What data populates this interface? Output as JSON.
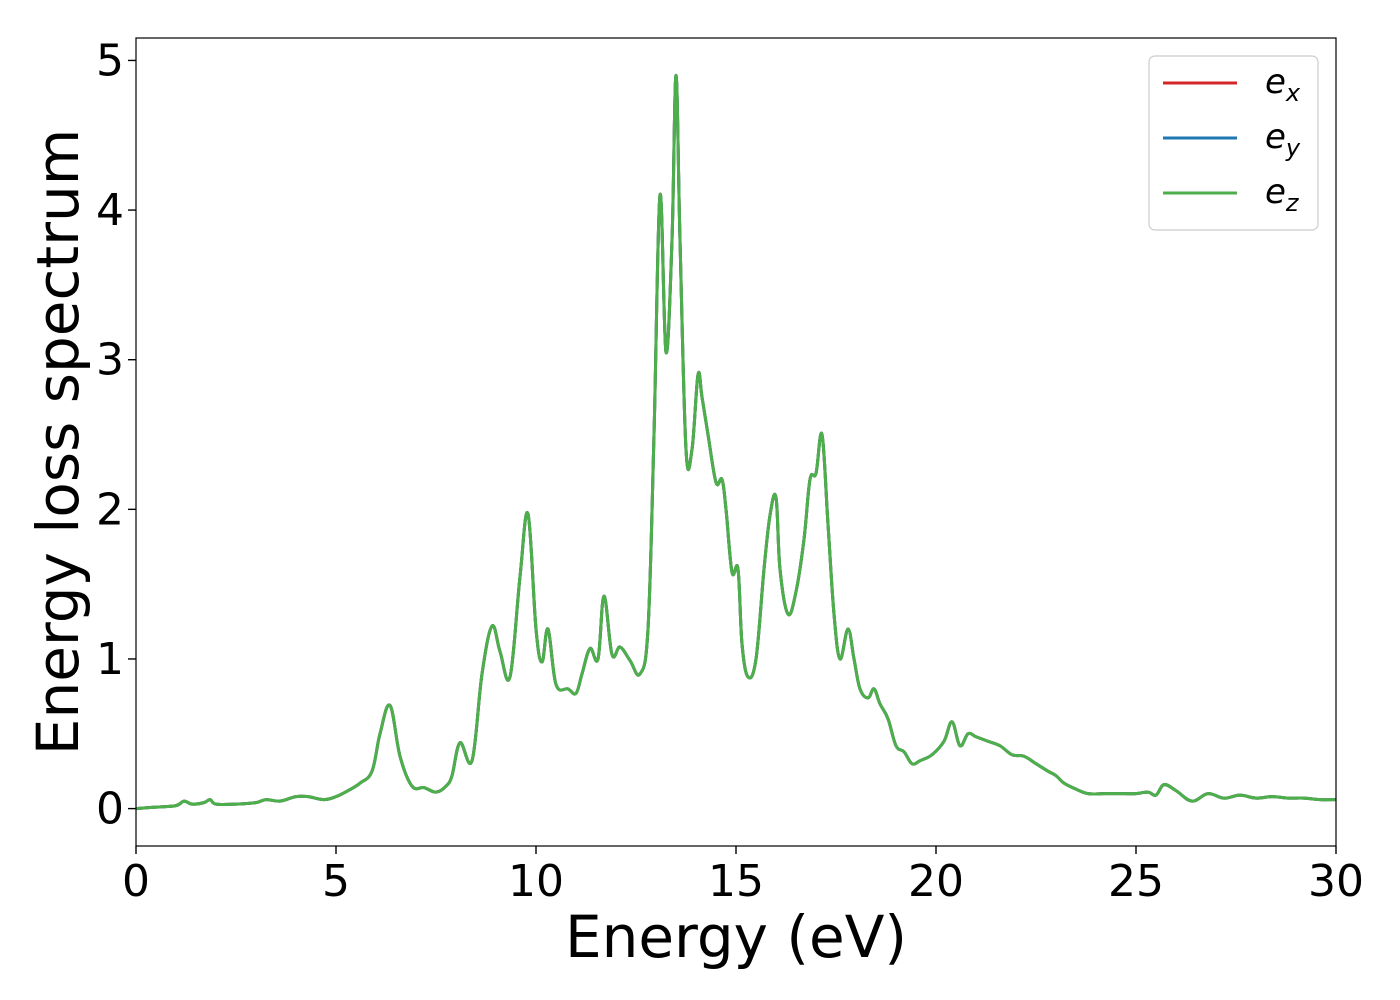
{
  "chart_data": {
    "type": "line",
    "xlabel": "Energy (eV)",
    "ylabel": "Energy loss spectrum",
    "xlim": [
      0,
      30
    ],
    "ylim": [
      -0.25,
      5.15
    ],
    "xticks": [
      0,
      5,
      10,
      15,
      20,
      25,
      30
    ],
    "yticks": [
      0,
      1,
      2,
      3,
      4,
      5
    ],
    "grid": false,
    "legend_position": "top-right",
    "series": [
      {
        "name_base": "e",
        "name_sub": "x",
        "color": "#d62728"
      },
      {
        "name_base": "e",
        "name_sub": "y",
        "color": "#1f77b4"
      },
      {
        "name_base": "e",
        "name_sub": "z",
        "color": "#4daf4a"
      }
    ],
    "x": [
      0,
      0.5,
      1.0,
      1.2,
      1.4,
      1.7,
      1.85,
      2.0,
      2.5,
      3.0,
      3.25,
      3.6,
      4.0,
      4.3,
      4.7,
      5.0,
      5.3,
      5.6,
      5.9,
      6.1,
      6.35,
      6.6,
      6.9,
      7.2,
      7.5,
      7.75,
      7.9,
      8.1,
      8.4,
      8.65,
      8.9,
      9.1,
      9.35,
      9.6,
      9.8,
      10.0,
      10.15,
      10.3,
      10.5,
      10.8,
      11.0,
      11.15,
      11.35,
      11.55,
      11.7,
      11.9,
      12.1,
      12.35,
      12.6,
      12.8,
      12.95,
      13.1,
      13.25,
      13.4,
      13.5,
      13.6,
      13.75,
      13.9,
      14.05,
      14.15,
      14.3,
      14.5,
      14.65,
      14.75,
      14.9,
      15.05,
      15.15,
      15.3,
      15.5,
      15.7,
      15.85,
      16.0,
      16.1,
      16.3,
      16.5,
      16.7,
      16.85,
      17.0,
      17.15,
      17.3,
      17.45,
      17.6,
      17.8,
      17.95,
      18.1,
      18.3,
      18.45,
      18.6,
      18.8,
      19.0,
      19.2,
      19.4,
      19.6,
      19.9,
      20.2,
      20.4,
      20.6,
      20.8,
      21.0,
      21.3,
      21.6,
      21.9,
      22.2,
      22.5,
      22.8,
      23.0,
      23.2,
      23.5,
      23.8,
      24.2,
      24.7,
      25.0,
      25.3,
      25.5,
      25.7,
      26.0,
      26.4,
      26.8,
      27.2,
      27.6,
      28.0,
      28.4,
      28.8,
      29.2,
      29.6,
      30.0
    ],
    "y": [
      0.0,
      0.01,
      0.02,
      0.05,
      0.03,
      0.04,
      0.06,
      0.03,
      0.03,
      0.04,
      0.06,
      0.05,
      0.08,
      0.08,
      0.06,
      0.08,
      0.12,
      0.17,
      0.25,
      0.5,
      0.69,
      0.35,
      0.15,
      0.14,
      0.11,
      0.15,
      0.22,
      0.44,
      0.32,
      0.9,
      1.22,
      1.05,
      0.88,
      1.55,
      1.97,
      1.2,
      0.98,
      1.2,
      0.83,
      0.8,
      0.77,
      0.9,
      1.07,
      1.0,
      1.42,
      1.03,
      1.08,
      0.99,
      0.9,
      1.2,
      2.5,
      4.1,
      3.05,
      3.8,
      4.9,
      3.8,
      2.4,
      2.4,
      2.9,
      2.75,
      2.5,
      2.18,
      2.2,
      2.0,
      1.58,
      1.6,
      1.1,
      0.88,
      1.0,
      1.6,
      1.96,
      2.08,
      1.6,
      1.3,
      1.45,
      1.8,
      2.2,
      2.24,
      2.5,
      1.9,
      1.3,
      1.0,
      1.2,
      1.0,
      0.8,
      0.74,
      0.8,
      0.7,
      0.6,
      0.42,
      0.38,
      0.3,
      0.32,
      0.36,
      0.45,
      0.58,
      0.42,
      0.5,
      0.48,
      0.45,
      0.42,
      0.36,
      0.35,
      0.3,
      0.25,
      0.22,
      0.17,
      0.13,
      0.1,
      0.1,
      0.1,
      0.1,
      0.11,
      0.09,
      0.16,
      0.12,
      0.05,
      0.1,
      0.07,
      0.09,
      0.07,
      0.08,
      0.07,
      0.07,
      0.06,
      0.06
    ]
  }
}
